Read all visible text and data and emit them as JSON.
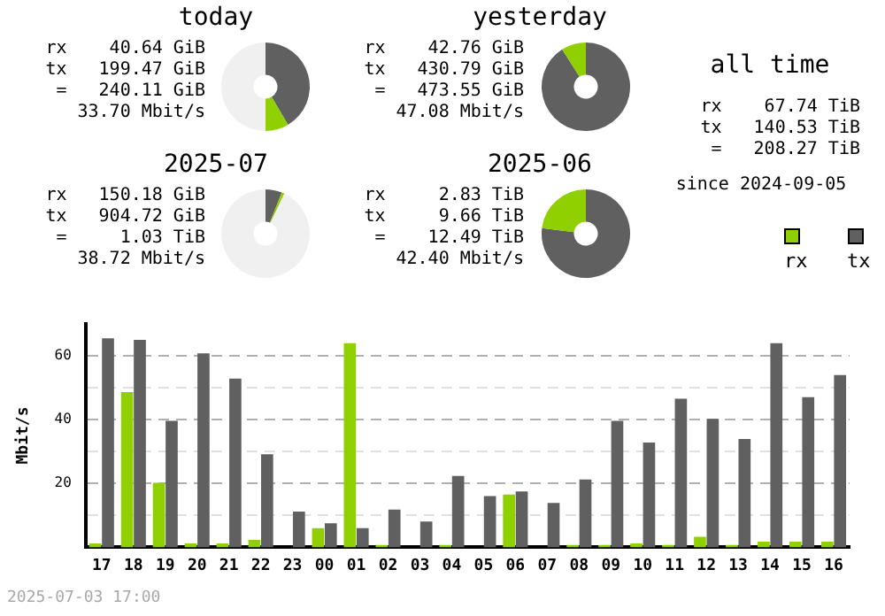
{
  "chart_data": [
    {
      "type": "donut",
      "title": "today",
      "categories": [
        null,
        null,
        null
      ],
      "values": [
        41.5,
        8.5,
        50
      ],
      "colors": [
        "#606060",
        "#90d000",
        "#f0f0f0"
      ],
      "annotations": [
        "rx    40.64 GiB",
        "tx   199.47 GiB",
        "=   240.11 GiB",
        "33.70 Mbit/s"
      ]
    },
    {
      "type": "donut",
      "title": "yesterday",
      "categories": [
        null,
        null
      ],
      "values": [
        91,
        9
      ],
      "colors": [
        "#606060",
        "#90d000"
      ],
      "annotations": [
        "rx    42.76 GiB",
        "tx   430.79 GiB",
        "=   473.55 GiB",
        "47.08 Mbit/s"
      ]
    },
    {
      "type": "other",
      "title": "all time",
      "annotations": [
        "rx    67.74 TiB",
        "tx   140.53 TiB",
        "=   208.27 TiB",
        "since 2024-09-05"
      ]
    },
    {
      "type": "donut",
      "title": "2025-07",
      "categories": [
        null,
        null,
        null
      ],
      "values": [
        6,
        1,
        93
      ],
      "colors": [
        "#606060",
        "#90d000",
        "#f0f0f0"
      ],
      "annotations": [
        "rx   150.18 GiB",
        "tx   904.72 GiB",
        "=     1.03 TiB",
        "38.72 Mbit/s"
      ]
    },
    {
      "type": "donut",
      "title": "2025-06",
      "categories": [
        null,
        null
      ],
      "values": [
        77,
        23
      ],
      "colors": [
        "#606060",
        "#90d000"
      ],
      "annotations": [
        "rx     2.83 TiB",
        "tx     9.66 TiB",
        "=    12.49 TiB",
        "42.40 Mbit/s"
      ]
    },
    {
      "type": "bar",
      "ylabel": "Mbit/s",
      "categories": [
        "17",
        "18",
        "19",
        "20",
        "21",
        "22",
        "23",
        "00",
        "01",
        "02",
        "03",
        "04",
        "05",
        "06",
        "07",
        "08",
        "09",
        "10",
        "11",
        "12",
        "13",
        "14",
        "15",
        "16"
      ],
      "series": [
        {
          "name": "rx",
          "color": "#90d000",
          "values": [
            1.2,
            48.6,
            20.2,
            1.2,
            1.2,
            2.3,
            0,
            6.0,
            63.9,
            0.7,
            0,
            0.7,
            0,
            16.5,
            0,
            0.7,
            0.7,
            1.2,
            0.7,
            3.3,
            0.7,
            1.8,
            1.8,
            1.8
          ]
        },
        {
          "name": "tx",
          "color": "#606060",
          "values": [
            65.4,
            64.9,
            39.6,
            60.7,
            52.8,
            29.1,
            11.2,
            7.5,
            6.0,
            11.8,
            8.1,
            22.3,
            16.0,
            17.5,
            13.9,
            21.2,
            39.6,
            32.8,
            46.5,
            40.2,
            33.9,
            63.9,
            47.0,
            53.9
          ]
        }
      ],
      "ylim": [
        0,
        70
      ],
      "yticks": [
        {
          "value": 10,
          "label": null
        },
        20,
        {
          "value": 30,
          "label": null
        },
        40,
        {
          "value": 50,
          "label": null
        },
        60
      ],
      "grid": "y",
      "legend": "top right",
      "annotations": [
        "2025-07-03 17:00"
      ]
    }
  ]
}
